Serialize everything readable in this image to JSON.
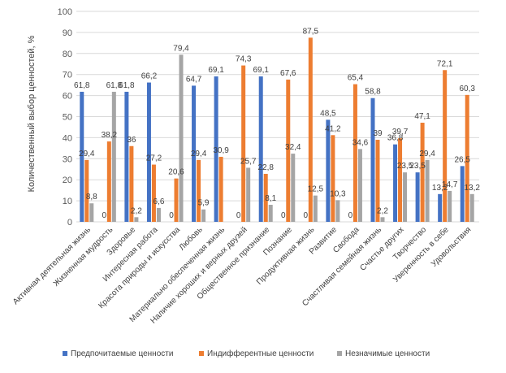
{
  "chart_data": {
    "type": "bar",
    "ylabel": "Количественный выбор ценностей, %",
    "xlabel": "",
    "ylim": [
      0,
      100
    ],
    "yticks": [
      0,
      10,
      20,
      30,
      40,
      50,
      60,
      70,
      80,
      90,
      100
    ],
    "grid": "horizontal",
    "legend_position": "bottom",
    "categories": [
      "Активная деятельная жизнь",
      "Жизненная мудрость",
      "Здоровье",
      "Интересная работа",
      "Красота природы и искусства",
      "Любовь",
      "Материально обеспеченная жизнь",
      "Наличие хороших и верных друзей",
      "Общественное признание",
      "Познание",
      "Продуктивная жизнь",
      "Развитие",
      "Свобода",
      "Счастливая семейная жизнь",
      "Счастье других",
      "Творчество",
      "Уверенность в себе",
      "Удовольствия"
    ],
    "series": [
      {
        "name": "Предпочитаемые ценности",
        "color": "#4472C4",
        "values": [
          61.8,
          0,
          61.8,
          66.2,
          0,
          64.7,
          69.1,
          0,
          69.1,
          0,
          0,
          48.5,
          0,
          58.8,
          36.8,
          23.5,
          13.2,
          26.5
        ]
      },
      {
        "name": "Индифферентные ценности",
        "color": "#ED7D31",
        "values": [
          29.4,
          38.2,
          36,
          27.2,
          20.6,
          29.4,
          30.9,
          74.3,
          22.8,
          67.6,
          87.5,
          41.2,
          65.4,
          39,
          39.7,
          47.1,
          72.1,
          60.3
        ]
      },
      {
        "name": "Незначимые ценности",
        "color": "#A5A5A5",
        "values": [
          8.8,
          61.8,
          2.2,
          6.6,
          79.4,
          5.9,
          null,
          25.7,
          8.1,
          32.4,
          12.5,
          10.3,
          34.6,
          2.2,
          23.5,
          29.4,
          14.7,
          13.2
        ]
      }
    ]
  }
}
